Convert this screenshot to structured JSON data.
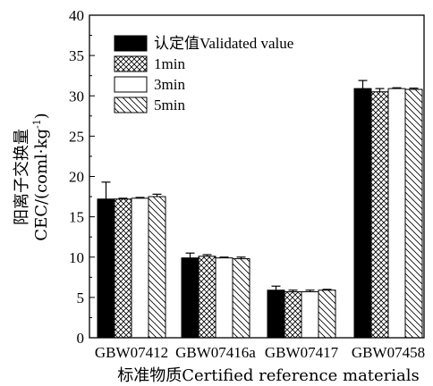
{
  "chart_data": {
    "type": "bar",
    "categories": [
      "GBW07412",
      "GBW07416a",
      "GBW07417",
      "GBW07458"
    ],
    "xlabel": "标准物质Certified reference materials",
    "ylabel_line1": "阳离子交换量",
    "ylabel_line2_main": "CEC/(coml·kg",
    "ylabel_line2_sup": "-1",
    "ylabel_line2_end": ")",
    "ylim": [
      0,
      40
    ],
    "yticks": [
      0,
      5,
      10,
      15,
      20,
      25,
      30,
      35,
      40
    ],
    "legend_position": "top-left",
    "series": [
      {
        "name": "认定值Validated value",
        "pattern": "solid",
        "values": [
          17.2,
          9.9,
          5.9,
          30.9
        ],
        "errors": [
          2.1,
          0.6,
          0.5,
          1.0
        ]
      },
      {
        "name": "1min",
        "pattern": "crosshatch",
        "values": [
          17.2,
          10.1,
          5.7,
          30.5
        ],
        "errors": [
          0.1,
          0.2,
          0.2,
          0.4
        ]
      },
      {
        "name": "3min",
        "pattern": "blank",
        "values": [
          17.3,
          9.9,
          5.7,
          30.9
        ],
        "errors": [
          0.1,
          0.1,
          0.2,
          0.1
        ]
      },
      {
        "name": "5min",
        "pattern": "diagonal",
        "values": [
          17.5,
          9.8,
          5.9,
          30.8
        ],
        "errors": [
          0.3,
          0.2,
          0.1,
          0.15
        ]
      }
    ]
  }
}
